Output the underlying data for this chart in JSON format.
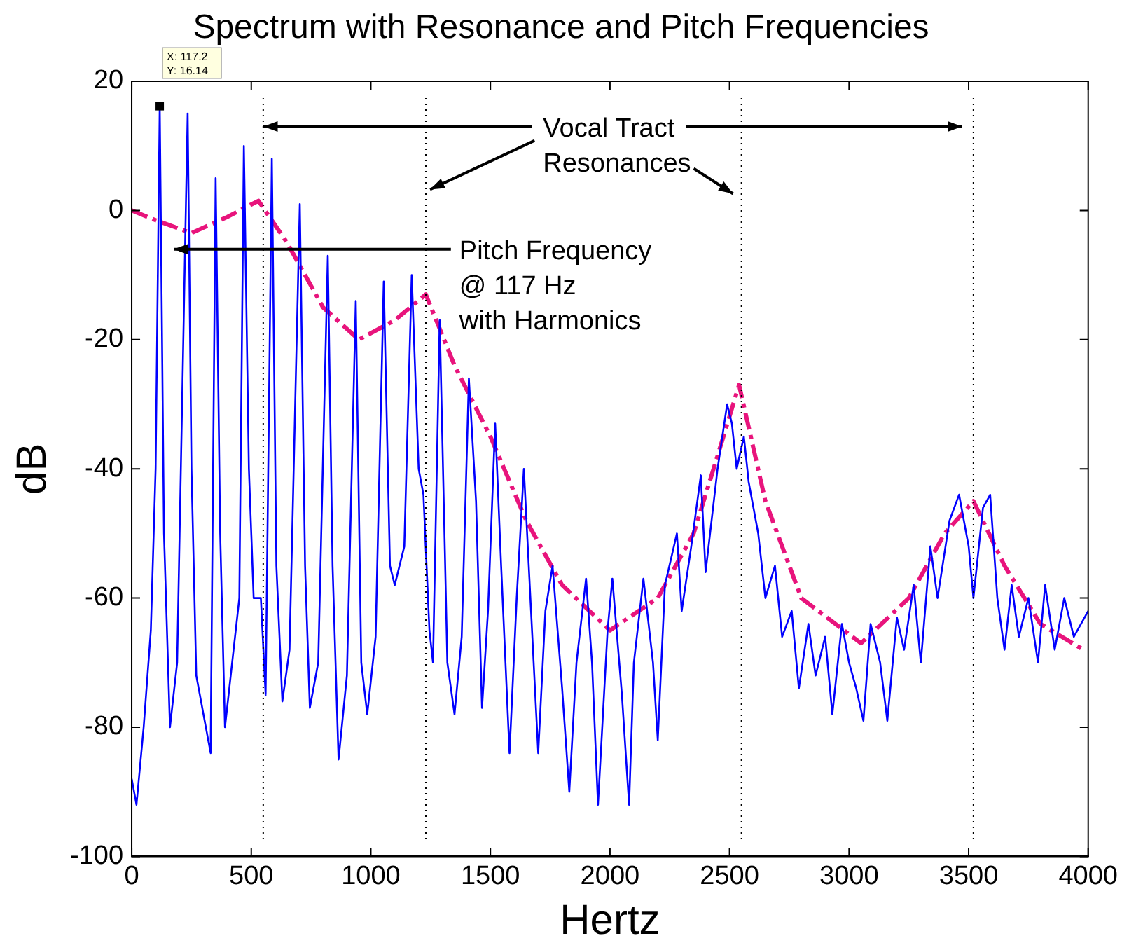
{
  "chart_data": {
    "type": "line",
    "title": "Spectrum with Resonance and Pitch Frequencies",
    "xlabel": "Hertz",
    "ylabel": "dB",
    "xlim": [
      0,
      4000
    ],
    "xticks": [
      0,
      500,
      1000,
      1500,
      2000,
      2500,
      3000,
      3500,
      4000
    ],
    "ylim": [
      -100,
      20
    ],
    "yticks": [
      -100,
      -80,
      -60,
      -40,
      -20,
      0,
      20
    ],
    "grid": false,
    "legend": false,
    "marker": "none",
    "series": [
      {
        "color": "#0000ff",
        "line_style": "solid",
        "x": [
          0,
          20,
          50,
          80,
          100,
          117.2,
          135,
          160,
          190,
          234,
          250,
          270,
          300,
          330,
          351,
          370,
          390,
          420,
          450,
          469,
          490,
          510,
          540,
          560,
          586,
          605,
          630,
          660,
          703,
          725,
          745,
          780,
          820,
          840,
          865,
          900,
          937,
          960,
          985,
          1020,
          1054,
          1080,
          1100,
          1140,
          1171,
          1200,
          1220,
          1245,
          1260,
          1288,
          1320,
          1350,
          1380,
          1410,
          1440,
          1465,
          1490,
          1520,
          1545,
          1580,
          1610,
          1640,
          1670,
          1700,
          1730,
          1760,
          1800,
          1830,
          1860,
          1900,
          1925,
          1950,
          1990,
          2010,
          2050,
          2080,
          2100,
          2140,
          2180,
          2200,
          2230,
          2280,
          2300,
          2340,
          2380,
          2400,
          2450,
          2490,
          2510,
          2530,
          2560,
          2580,
          2620,
          2650,
          2690,
          2720,
          2760,
          2790,
          2830,
          2860,
          2900,
          2930,
          2970,
          3000,
          3030,
          3060,
          3090,
          3130,
          3160,
          3200,
          3230,
          3270,
          3300,
          3340,
          3370,
          3420,
          3460,
          3500,
          3520,
          3560,
          3590,
          3620,
          3650,
          3680,
          3710,
          3750,
          3790,
          3820,
          3860,
          3900,
          3940,
          4000
        ],
        "values": [
          -88,
          -92,
          -80,
          -65,
          -40,
          16.1,
          -50,
          -80,
          -70,
          15,
          -40,
          -72,
          -78,
          -84,
          5,
          -50,
          -80,
          -70,
          -60,
          10,
          -40,
          -60,
          -60,
          -75,
          8,
          -55,
          -76,
          -68,
          1,
          -55,
          -77,
          -70,
          -7,
          -55,
          -85,
          -72,
          -14,
          -70,
          -78,
          -66,
          -11,
          -55,
          -58,
          -52,
          -10,
          -40,
          -44,
          -65,
          -70,
          -17,
          -70,
          -78,
          -66,
          -26,
          -45,
          -77,
          -62,
          -33,
          -55,
          -84,
          -60,
          -40,
          -62,
          -84,
          -62,
          -55,
          -74,
          -90,
          -70,
          -57,
          -70,
          -92,
          -65,
          -57,
          -75,
          -92,
          -70,
          -57,
          -70,
          -82,
          -58,
          -50,
          -62,
          -52,
          -41,
          -56,
          -40,
          -30,
          -33,
          -40,
          -35,
          -42,
          -50,
          -60,
          -55,
          -66,
          -62,
          -74,
          -64,
          -72,
          -66,
          -78,
          -64,
          -70,
          -74,
          -79,
          -64,
          -70,
          -79,
          -63,
          -68,
          -58,
          -70,
          -52,
          -60,
          -48,
          -44,
          -52,
          -60,
          -46,
          -44,
          -60,
          -68,
          -58,
          -66,
          -60,
          -70,
          -58,
          -68,
          -60,
          -66,
          -62
        ]
      },
      {
        "color": "#e8147c",
        "line_style": "dashed",
        "x": [
          0,
          100,
          250,
          400,
          530,
          650,
          800,
          950,
          1100,
          1230,
          1350,
          1500,
          1650,
          1800,
          2000,
          2200,
          2350,
          2450,
          2540,
          2650,
          2800,
          3050,
          3250,
          3400,
          3520,
          3650,
          3800,
          3980
        ],
        "values": [
          0,
          -1.5,
          -3.5,
          -1,
          1.5,
          -5,
          -15,
          -20,
          -17,
          -13,
          -24,
          -35,
          -48,
          -58,
          -65,
          -60,
          -50,
          -38,
          -27,
          -45,
          -60,
          -67,
          -60,
          -50,
          -45,
          -55,
          -64,
          -68
        ]
      }
    ],
    "ref_lines": [
      {
        "axis": "x",
        "value": 550,
        "color": "#000000",
        "line_style": "dotted"
      },
      {
        "axis": "x",
        "value": 1230,
        "color": "#000000",
        "line_style": "dotted"
      },
      {
        "axis": "x",
        "value": 2550,
        "color": "#000000",
        "line_style": "dotted"
      },
      {
        "axis": "x",
        "value": 3520,
        "color": "#000000",
        "line_style": "dotted"
      }
    ],
    "annotations": [
      {
        "text": "X: 117.2\nY: 16.14",
        "x": 117.2,
        "y": 16.14
      },
      {
        "text": "Vocal Tract\nResonances",
        "x": 550,
        "y": 13
      },
      "Pitch Frequency\n@ 117 Hz\nwith Harmonics"
    ]
  }
}
